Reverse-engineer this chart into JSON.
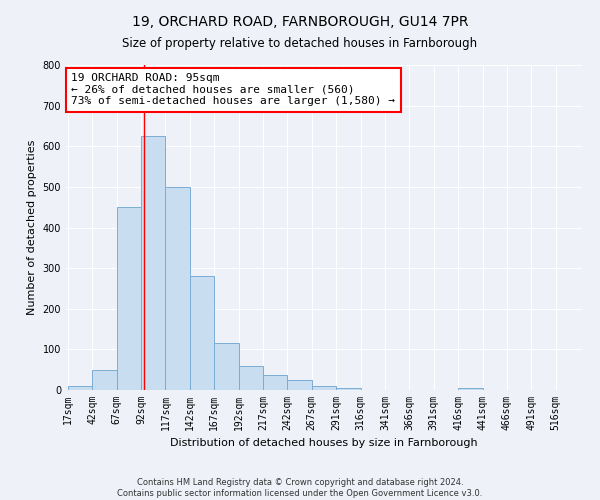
{
  "title": "19, ORCHARD ROAD, FARNBOROUGH, GU14 7PR",
  "subtitle": "Size of property relative to detached houses in Farnborough",
  "xlabel": "Distribution of detached houses by size in Farnborough",
  "ylabel": "Number of detached properties",
  "bar_color": "#c9ddf0",
  "bar_edge_color": "#7aadd4",
  "background_color": "#eef2f8",
  "bin_labels": [
    "17sqm",
    "42sqm",
    "67sqm",
    "92sqm",
    "117sqm",
    "142sqm",
    "167sqm",
    "192sqm",
    "217sqm",
    "242sqm",
    "267sqm",
    "291sqm",
    "316sqm",
    "341sqm",
    "366sqm",
    "391sqm",
    "416sqm",
    "441sqm",
    "466sqm",
    "491sqm",
    "516sqm"
  ],
  "bar_values": [
    10,
    50,
    450,
    625,
    500,
    280,
    115,
    60,
    38,
    25,
    10,
    6,
    0,
    0,
    0,
    0,
    5,
    0,
    0,
    0,
    0
  ],
  "ylim": [
    0,
    800
  ],
  "yticks": [
    0,
    100,
    200,
    300,
    400,
    500,
    600,
    700,
    800
  ],
  "property_size": 95,
  "annotation_line1": "19 ORCHARD ROAD: 95sqm",
  "annotation_line2": "← 26% of detached houses are smaller (560)",
  "annotation_line3": "73% of semi-detached houses are larger (1,580) →",
  "footer_line1": "Contains HM Land Registry data © Crown copyright and database right 2024.",
  "footer_line2": "Contains public sector information licensed under the Open Government Licence v3.0.",
  "bin_width": 25,
  "grid_color": "#ffffff",
  "title_fontsize": 10,
  "subtitle_fontsize": 8.5,
  "annotation_fontsize": 8,
  "tick_fontsize": 7,
  "axis_label_fontsize": 8,
  "footer_fontsize": 6
}
